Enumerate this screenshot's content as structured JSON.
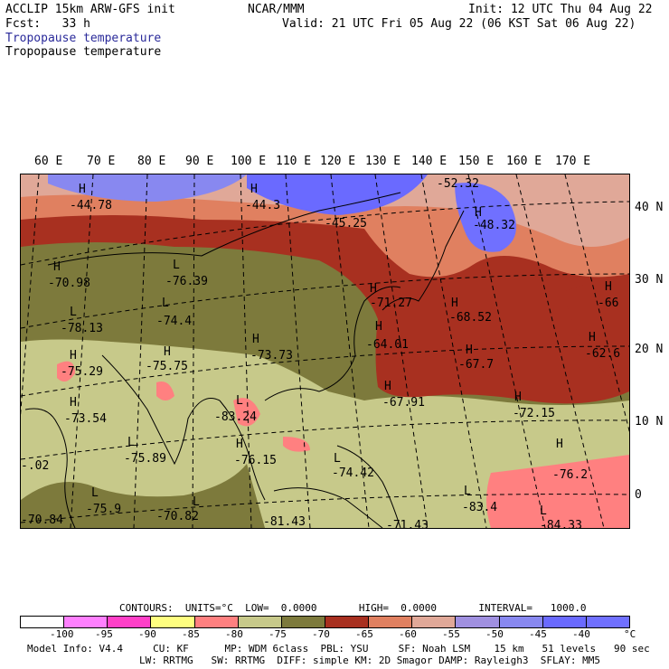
{
  "header": {
    "model": "ACCLIP 15km ARW-GFS init",
    "fcst": "Fcst:   33 h",
    "org": "NCAR/MMM",
    "init": "Init: 12 UTC Thu 04 Aug 22",
    "valid": "Valid: 21 UTC Fri 05 Aug 22 (06 KST Sat 06 Aug 22)",
    "field1": "Tropopause temperature",
    "field2": "Tropopause temperature"
  },
  "lon_labels": [
    "60 E",
    "70 E",
    "80 E",
    "90 E",
    "100 E",
    "110 E",
    "120 E",
    "130 E",
    "140 E",
    "150 E",
    "160 E",
    "170 E"
  ],
  "lat_labels": [
    "40 N",
    "30 N",
    "20 N",
    "10 N",
    "0"
  ],
  "extrema": [
    {
      "mark": "H",
      "value": "-44.78"
    },
    {
      "mark": "H",
      "value": "-44.3"
    },
    {
      "mark": "",
      "value": "-45.25"
    },
    {
      "mark": "",
      "value": "-52.32"
    },
    {
      "mark": "H",
      "value": "-48.32"
    },
    {
      "mark": "H",
      "value": "-70.98"
    },
    {
      "mark": "L",
      "value": "-76.39"
    },
    {
      "mark": "L",
      "value": "-78.13"
    },
    {
      "mark": "L",
      "value": "-74.4"
    },
    {
      "mark": "H",
      "value": "-75.29"
    },
    {
      "mark": "H",
      "value": "-75.75"
    },
    {
      "mark": "H",
      "value": "-73.73"
    },
    {
      "mark": "H",
      "value": "-71.27"
    },
    {
      "mark": "H",
      "value": "-68.52"
    },
    {
      "mark": "H",
      "value": "-66"
    },
    {
      "mark": "H",
      "value": "-64.01"
    },
    {
      "mark": "H",
      "value": "-67.7"
    },
    {
      "mark": "H",
      "value": "-62.6"
    },
    {
      "mark": "H",
      "value": "-67.91"
    },
    {
      "mark": "H",
      "value": "-72.15"
    },
    {
      "mark": "H",
      "value": "-73.54"
    },
    {
      "mark": "L",
      "value": "-83.24"
    },
    {
      "mark": "L",
      "value": "-75.89"
    },
    {
      "mark": "H",
      "value": "-76.15"
    },
    {
      "mark": "L",
      "value": "-74.42"
    },
    {
      "mark": "H",
      "value": "-76.2"
    },
    {
      "mark": "",
      "value": "-.02"
    },
    {
      "mark": "L",
      "value": "-75.9"
    },
    {
      "mark": "L",
      "value": "-70.82"
    },
    {
      "mark": "L",
      "value": "-83.4"
    },
    {
      "mark": "",
      "value": "-70.84"
    },
    {
      "mark": "",
      "value": "-81.43"
    },
    {
      "mark": "",
      "value": "-71.43"
    },
    {
      "mark": "L",
      "value": "-84.33"
    }
  ],
  "contour_info": "CONTOURS:  UNITS=°C  LOW=  0.0000       HIGH=  0.0000       INTERVAL=   1000.0",
  "legend": {
    "colors": [
      "#ffffff",
      "#ff80ff",
      "#ff40c8",
      "#ffff80",
      "#ff8080",
      "#c7c98a",
      "#7d7a3c",
      "#a83020",
      "#e08060",
      "#e0a898",
      "#a090e0",
      "#8888f0",
      "#6a6aff",
      "#7070ff"
    ],
    "labels": [
      "-100",
      "-95",
      "-90",
      "-85",
      "-80",
      "-75",
      "-70",
      "-65",
      "-60",
      "-55",
      "-50",
      "-45",
      "-40"
    ],
    "unit": "°C"
  },
  "footer": {
    "line1": "Model Info: V4.4     CU: KF      MP: WDM 6class  PBL: YSU     SF: Noah LSM    15 km   51 levels   90 sec",
    "line2": "LW: RRTMG   SW: RRTMG  DIFF: simple KM: 2D Smagor DAMP: Rayleigh3  SFLAY: MM5"
  }
}
